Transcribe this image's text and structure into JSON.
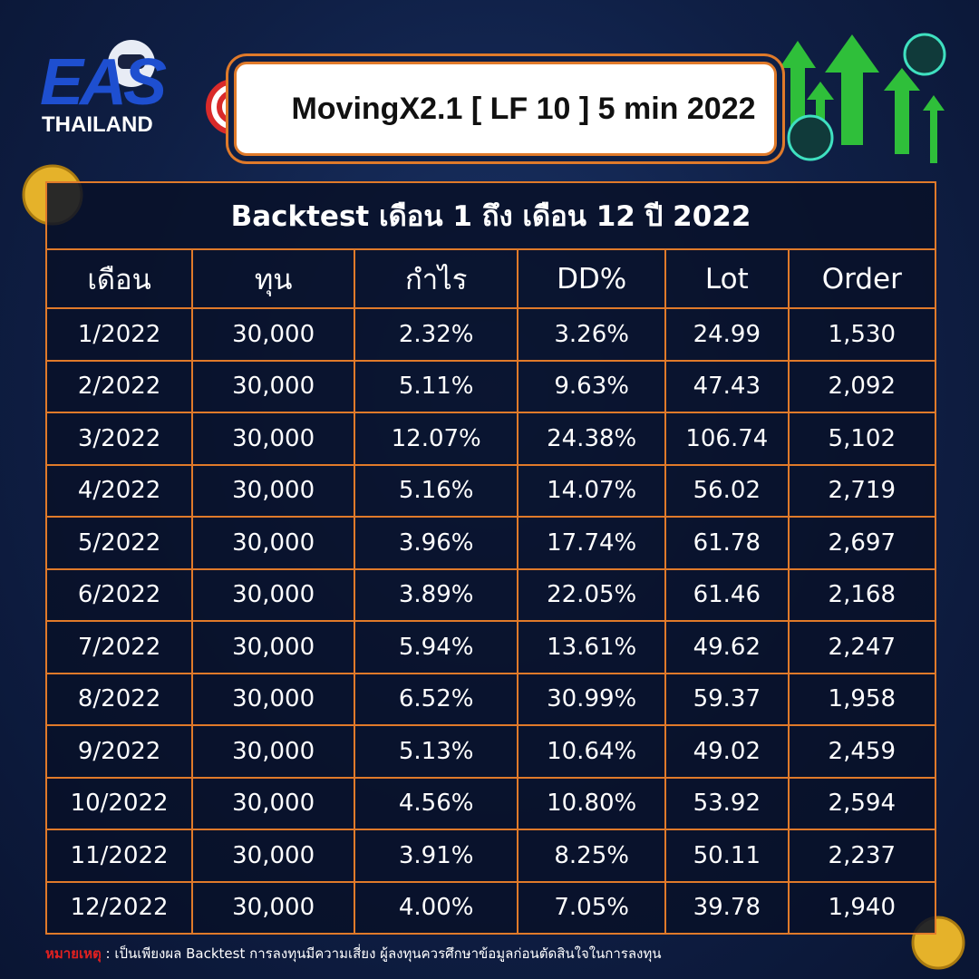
{
  "logo": {
    "brand": "EAS",
    "sub": "THAILAND"
  },
  "header": {
    "title": "MovingX2.1 [ LF 10 ] 5 min 2022"
  },
  "table": {
    "title": "Backtest เดือน 1 ถึง เดือน 12 ปี 2022",
    "columns": [
      "เดือน",
      "ทุน",
      "กำไร",
      "DD%",
      "Lot",
      "Order"
    ],
    "rows": [
      [
        "1/2022",
        "30,000",
        "2.32%",
        "3.26%",
        "24.99",
        "1,530"
      ],
      [
        "2/2022",
        "30,000",
        "5.11%",
        "9.63%",
        "47.43",
        "2,092"
      ],
      [
        "3/2022",
        "30,000",
        "12.07%",
        "24.38%",
        "106.74",
        "5,102"
      ],
      [
        "4/2022",
        "30,000",
        "5.16%",
        "14.07%",
        "56.02",
        "2,719"
      ],
      [
        "5/2022",
        "30,000",
        "3.96%",
        "17.74%",
        "61.78",
        "2,697"
      ],
      [
        "6/2022",
        "30,000",
        "3.89%",
        "22.05%",
        "61.46",
        "2,168"
      ],
      [
        "7/2022",
        "30,000",
        "5.94%",
        "13.61%",
        "49.62",
        "2,247"
      ],
      [
        "8/2022",
        "30,000",
        "6.52%",
        "30.99%",
        "59.37",
        "1,958"
      ],
      [
        "9/2022",
        "30,000",
        "5.13%",
        "10.64%",
        "49.02",
        "2,459"
      ],
      [
        "10/2022",
        "30,000",
        "4.56%",
        "10.80%",
        "53.92",
        "2,594"
      ],
      [
        "11/2022",
        "30,000",
        "3.91%",
        "8.25%",
        "50.11",
        "2,237"
      ],
      [
        "12/2022",
        "30,000",
        "4.00%",
        "7.05%",
        "39.78",
        "1,940"
      ]
    ]
  },
  "footer": {
    "label": "หมายเหตุ",
    "text": ": เป็นเพียงผล Backtest การลงทุนมีความเสี่ยง ผู้ลงทุนควรศึกษาข้อมูลก่อนตัดสินใจในการลงทุน"
  }
}
